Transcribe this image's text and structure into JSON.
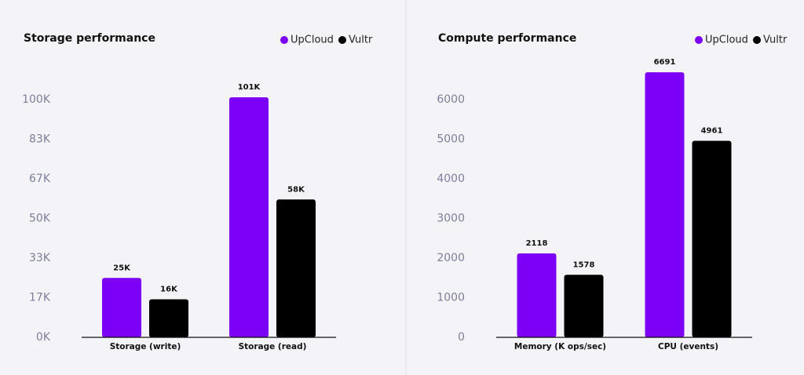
{
  "chart_data": [
    {
      "type": "bar",
      "title": "Storage performance",
      "categories": [
        "Storage (write)",
        "Storage (read)"
      ],
      "series": [
        {
          "name": "UpCloud",
          "color": "#7b00f5",
          "values": [
            25,
            101
          ],
          "value_labels": [
            "25K",
            "101K"
          ]
        },
        {
          "name": "Vultr",
          "color": "#000000",
          "values": [
            16,
            58
          ],
          "value_labels": [
            "16K",
            "58K"
          ]
        }
      ],
      "ylim": [
        0,
        116.7
      ],
      "yticks": [
        {
          "value": 0,
          "label": "0K"
        },
        {
          "value": 16.67,
          "label": "17K"
        },
        {
          "value": 33.33,
          "label": "33K"
        },
        {
          "value": 50,
          "label": "50K"
        },
        {
          "value": 66.67,
          "label": "67K"
        },
        {
          "value": 83.33,
          "label": "83K"
        },
        {
          "value": 100,
          "label": "100K"
        }
      ],
      "legend": "top-right"
    },
    {
      "type": "bar",
      "title": "Compute performance",
      "categories": [
        "Memory (K ops/sec)",
        "CPU (events)"
      ],
      "series": [
        {
          "name": "UpCloud",
          "color": "#7b00f5",
          "values": [
            2118,
            6691
          ]
        },
        {
          "name": "Vultr",
          "color": "#000000",
          "values": [
            1578,
            4961
          ]
        }
      ],
      "ylim": [
        0,
        7000
      ],
      "yticks": [
        0,
        1000,
        2000,
        3000,
        4000,
        5000,
        6000
      ],
      "legend": "top-right"
    }
  ]
}
